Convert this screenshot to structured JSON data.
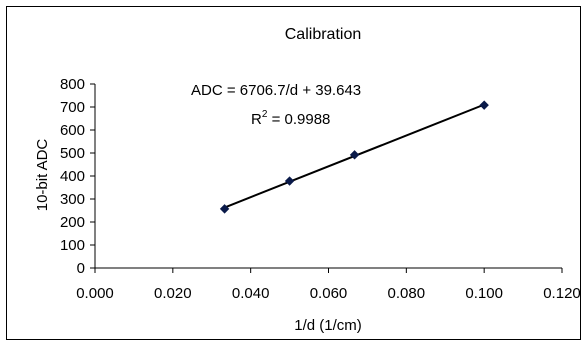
{
  "chart_data": {
    "type": "scatter",
    "title": "Calibration",
    "xlabel": "1/d (1/cm)",
    "ylabel": "10-bit ADC",
    "xlim": [
      0.0,
      0.12
    ],
    "ylim": [
      0,
      800
    ],
    "x_ticks": [
      "0.000",
      "0.020",
      "0.040",
      "0.060",
      "0.080",
      "0.100",
      "0.120"
    ],
    "y_ticks": [
      "0",
      "100",
      "200",
      "300",
      "400",
      "500",
      "600",
      "700",
      "800"
    ],
    "grid": false,
    "legend": "none",
    "series": [
      {
        "x": [
          0.0333,
          0.05,
          0.0667,
          0.1
        ],
        "y": [
          257,
          378,
          492,
          708
        ],
        "color": "#0a1a4a",
        "marker": "diamond"
      }
    ],
    "trendline": {
      "type": "linear",
      "slope": 6706.7,
      "intercept": 39.643,
      "color": "#000000",
      "equation_label": "ADC = 6706.7/d + 39.643",
      "r2_prefix": "R",
      "r2_sup": "2",
      "r2_value": " = 0.9988"
    }
  }
}
